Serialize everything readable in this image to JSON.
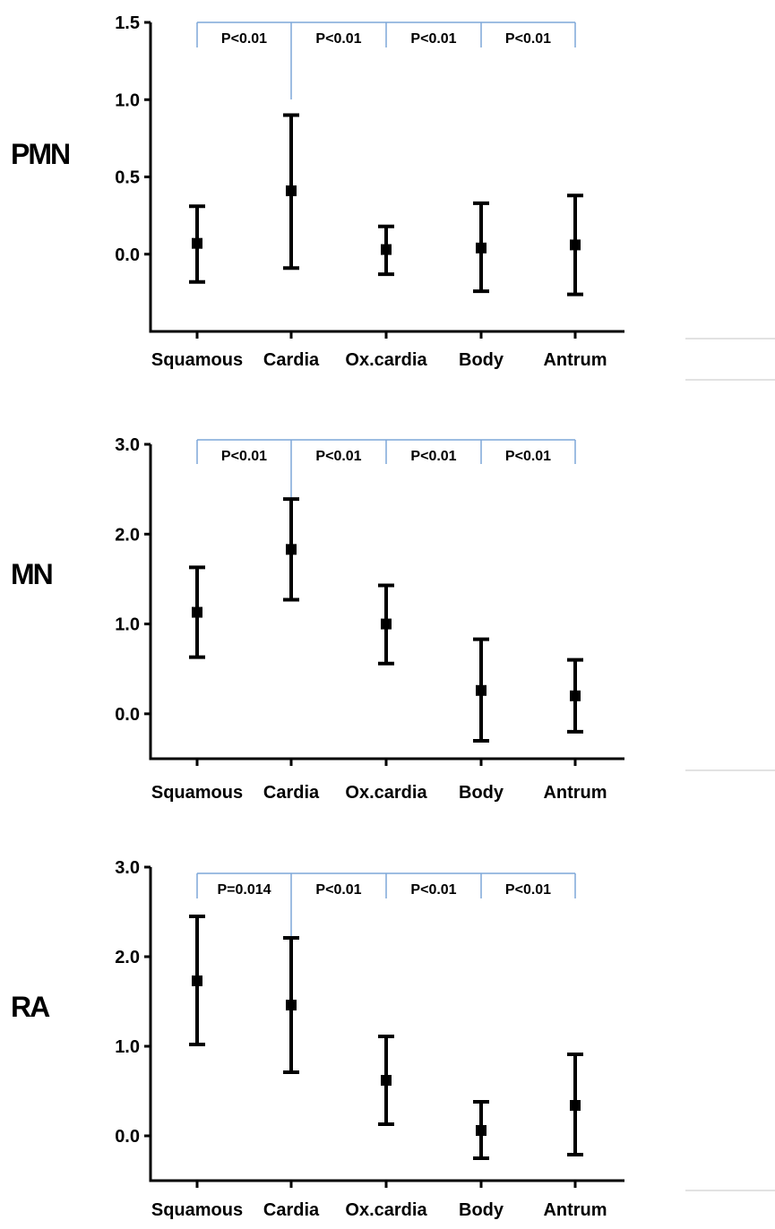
{
  "chart_data": [
    {
      "type": "scatter",
      "panel_label": "PMN",
      "categories": [
        "Squamous",
        "Cardia",
        "Ox.cardia",
        "Body",
        "Antrum"
      ],
      "y_ticks": [
        "1.5",
        "1.0",
        "0.5",
        "0.0"
      ],
      "ylim": [
        -0.5,
        1.5
      ],
      "points": [
        {
          "category": "Squamous",
          "mean": 0.07,
          "low": -0.18,
          "high": 0.31
        },
        {
          "category": "Cardia",
          "mean": 0.41,
          "low": -0.09,
          "high": 0.9
        },
        {
          "category": "Ox.cardia",
          "mean": 0.03,
          "low": -0.13,
          "high": 0.18
        },
        {
          "category": "Body",
          "mean": 0.04,
          "low": -0.24,
          "high": 0.33
        },
        {
          "category": "Antrum",
          "mean": 0.06,
          "low": -0.26,
          "high": 0.38
        }
      ],
      "comparisons": [
        {
          "from": "Squamous",
          "to": "Cardia",
          "label": "P<0.01"
        },
        {
          "from": "Cardia",
          "to": "Ox.cardia",
          "label": "P<0.01"
        },
        {
          "from": "Ox.cardia",
          "to": "Body",
          "label": "P<0.01"
        },
        {
          "from": "Body",
          "to": "Antrum",
          "label": "P<0.01"
        }
      ]
    },
    {
      "type": "scatter",
      "panel_label": "MN",
      "categories": [
        "Squamous",
        "Cardia",
        "Ox.cardia",
        "Body",
        "Antrum"
      ],
      "y_ticks": [
        "3.0",
        "2.0",
        "1.0",
        "0.0"
      ],
      "ylim": [
        -0.5,
        3.0
      ],
      "points": [
        {
          "category": "Squamous",
          "mean": 1.13,
          "low": 0.63,
          "high": 1.63
        },
        {
          "category": "Cardia",
          "mean": 1.83,
          "low": 1.27,
          "high": 2.39
        },
        {
          "category": "Ox.cardia",
          "mean": 1.0,
          "low": 0.56,
          "high": 1.43
        },
        {
          "category": "Body",
          "mean": 0.26,
          "low": -0.3,
          "high": 0.83
        },
        {
          "category": "Antrum",
          "mean": 0.2,
          "low": -0.2,
          "high": 0.6
        }
      ],
      "comparisons": [
        {
          "from": "Squamous",
          "to": "Cardia",
          "label": "P<0.01"
        },
        {
          "from": "Cardia",
          "to": "Ox.cardia",
          "label": "P<0.01"
        },
        {
          "from": "Ox.cardia",
          "to": "Body",
          "label": "P<0.01"
        },
        {
          "from": "Body",
          "to": "Antrum",
          "label": "P<0.01"
        }
      ]
    },
    {
      "type": "scatter",
      "panel_label": "RA",
      "categories": [
        "Squamous",
        "Cardia",
        "Ox.cardia",
        "Body",
        "Antrum"
      ],
      "y_ticks": [
        "3.0",
        "2.0",
        "1.0",
        "0.0"
      ],
      "ylim": [
        -0.5,
        3.0
      ],
      "points": [
        {
          "category": "Squamous",
          "mean": 1.73,
          "low": 1.02,
          "high": 2.45
        },
        {
          "category": "Cardia",
          "mean": 1.46,
          "low": 0.71,
          "high": 2.21
        },
        {
          "category": "Ox.cardia",
          "mean": 0.62,
          "low": 0.13,
          "high": 1.11
        },
        {
          "category": "Body",
          "mean": 0.06,
          "low": -0.25,
          "high": 0.38
        },
        {
          "category": "Antrum",
          "mean": 0.34,
          "low": -0.21,
          "high": 0.91
        }
      ],
      "comparisons": [
        {
          "from": "Squamous",
          "to": "Cardia",
          "label": "P=0.014"
        },
        {
          "from": "Cardia",
          "to": "Ox.cardia",
          "label": "P<0.01"
        },
        {
          "from": "Ox.cardia",
          "to": "Body",
          "label": "P<0.01"
        },
        {
          "from": "Body",
          "to": "Antrum",
          "label": "P<0.01"
        }
      ]
    }
  ],
  "colors": {
    "axis": "#000000",
    "error_bar": "#000000",
    "bracket": "#7da7d9",
    "divider": "#d9d9d9"
  }
}
